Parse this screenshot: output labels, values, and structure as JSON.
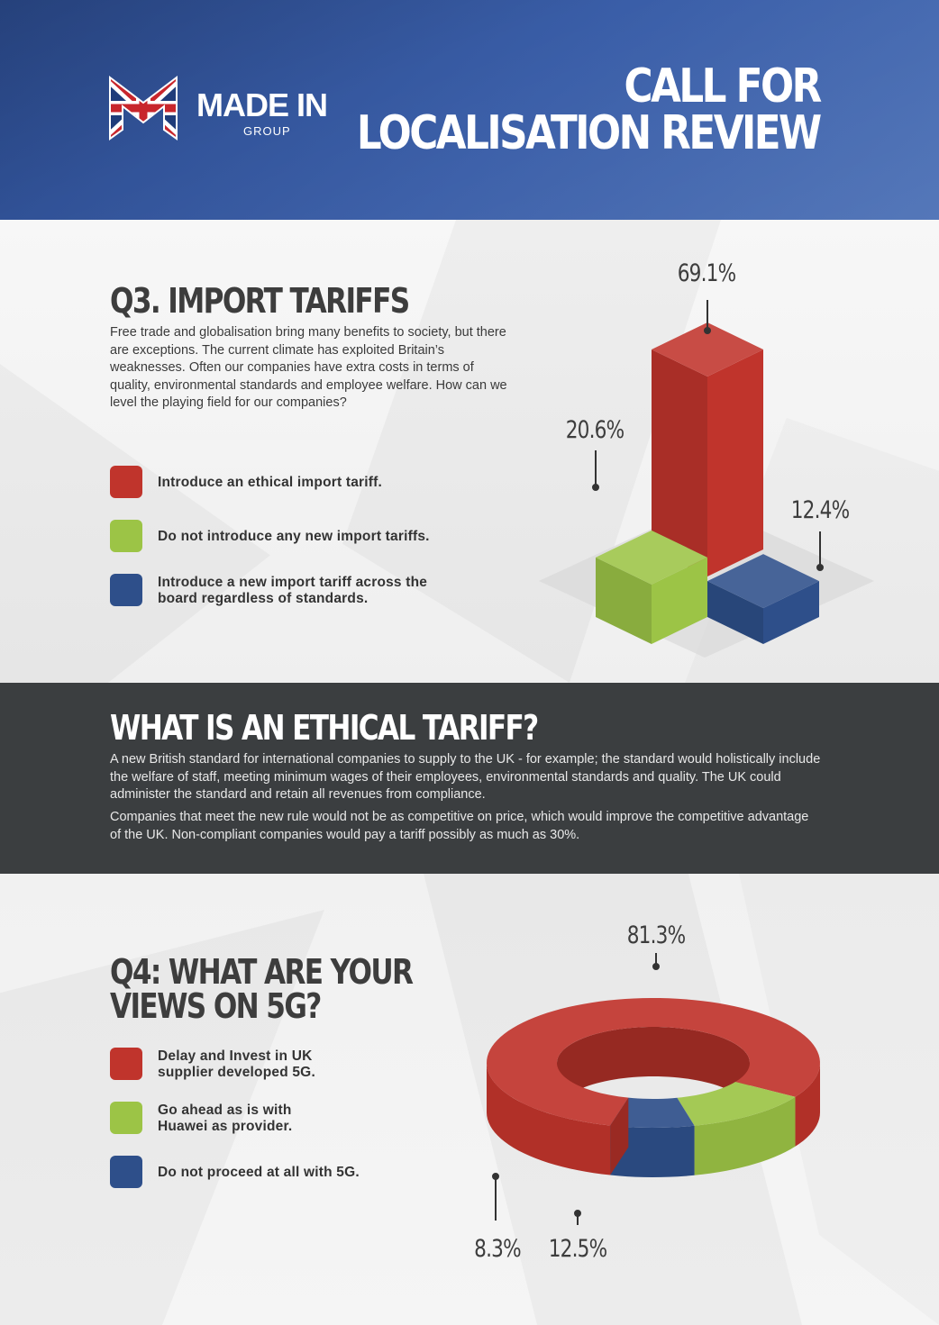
{
  "colors": {
    "red": "#c0342c",
    "green": "#9cc446",
    "blue": "#2e4f8a",
    "header_blue": "#3a5ea8",
    "dark_band": "#3b3e40"
  },
  "header": {
    "logo_text": "MADE IN",
    "logo_sub": "GROUP",
    "title_line1": "CALL FOR",
    "title_line2": "LOCALISATION REVIEW"
  },
  "q3": {
    "title": "Q3. IMPORT TARIFFS",
    "description": "Free trade and globalisation bring many benefits to society, but there are exceptions. The current climate has exploited Britain’s weaknesses. Often our companies have extra costs in terms of quality, environmental standards and employee welfare. How can we level the playing field for our companies?",
    "legend": [
      {
        "label": "Introduce an ethical import tariff.",
        "color": "#c0342c"
      },
      {
        "label": "Do not introduce any new import tariffs.",
        "color": "#9cc446"
      },
      {
        "label": "Introduce a new import tariff across the board regardless of standards.",
        "color": "#2e4f8a"
      }
    ],
    "value_labels": [
      "69.1%",
      "20.6%",
      "12.4%"
    ]
  },
  "ethical": {
    "title": "WHAT IS AN ETHICAL TARIFF?",
    "paragraph1": "A new British standard for international companies to supply to the UK - for example; the standard would holistically include the welfare of staff, meeting minimum wages of their employees, environmental standards and quality. The UK could administer the standard and retain all revenues from compliance.",
    "paragraph2": "Companies that meet the new rule would not be as competitive on price, which would improve the competitive advantage of the UK. Non-compliant companies would pay a tariff possibly as much as 30%."
  },
  "q4": {
    "title_line1": "Q4: WHAT ARE YOUR",
    "title_line2": "VIEWS ON 5G?",
    "legend": [
      {
        "label": "Delay and Invest in UK supplier developed 5G.",
        "color": "#c0342c"
      },
      {
        "label": "Go ahead as is with Huawei as provider.",
        "color": "#9cc446"
      },
      {
        "label": "Do not proceed at all with 5G.",
        "color": "#2e4f8a"
      }
    ],
    "value_labels": [
      "81.3%",
      "12.5%",
      "8.3%"
    ]
  },
  "chart_data": [
    {
      "type": "bar",
      "title": "Q3. IMPORT TARIFFS",
      "categories": [
        "Introduce an ethical import tariff.",
        "Do not introduce any new import tariffs.",
        "Introduce a new import tariff across the board regardless of standards."
      ],
      "values": [
        69.1,
        20.6,
        12.4
      ],
      "colors": [
        "#c0342c",
        "#9cc446",
        "#2e4f8a"
      ],
      "style": "3d-isometric"
    },
    {
      "type": "pie",
      "title": "Q4: WHAT ARE YOUR VIEWS ON 5G?",
      "categories": [
        "Delay and Invest in UK supplier developed 5G.",
        "Go ahead as is with Huawei as provider.",
        "Do not proceed at all with 5G."
      ],
      "values": [
        81.3,
        12.5,
        8.3
      ],
      "colors": [
        "#c0342c",
        "#9cc446",
        "#2e4f8a"
      ],
      "style": "3d-donut"
    }
  ]
}
